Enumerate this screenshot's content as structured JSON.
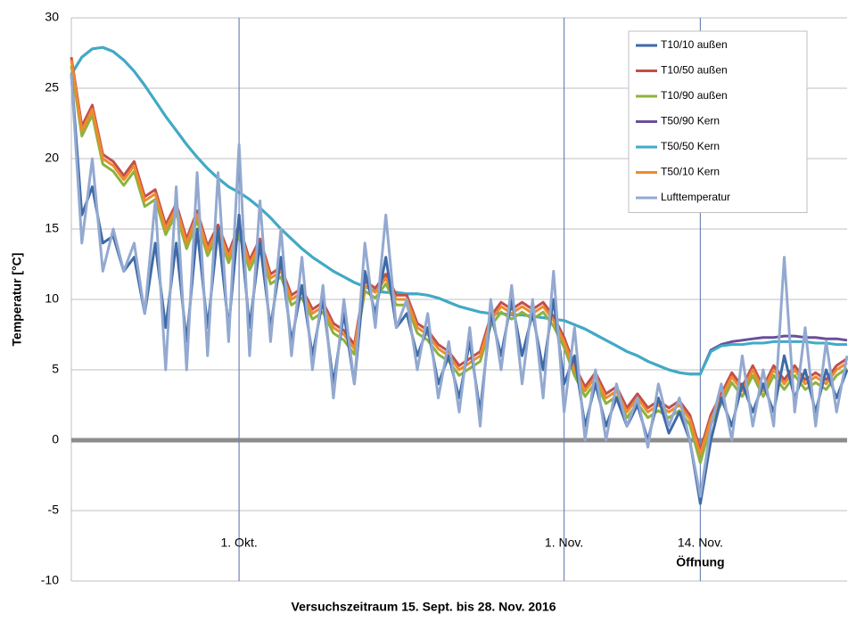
{
  "chart_data": {
    "type": "line",
    "xlabel": "Versuchszeitraum 15. Sept. bis 28. Nov. 2016",
    "ylabel": "Temperatur [°C]",
    "annotations": [
      {
        "text": "Öffnung",
        "x": 60
      }
    ],
    "x": [
      0,
      1,
      2,
      3,
      4,
      5,
      6,
      7,
      8,
      9,
      10,
      11,
      12,
      13,
      14,
      15,
      16,
      17,
      18,
      19,
      20,
      21,
      22,
      23,
      24,
      25,
      26,
      27,
      28,
      29,
      30,
      31,
      32,
      33,
      34,
      35,
      36,
      37,
      38,
      39,
      40,
      41,
      42,
      43,
      44,
      45,
      46,
      47,
      48,
      49,
      50,
      51,
      52,
      53,
      54,
      55,
      56,
      57,
      58,
      59,
      60,
      61,
      62,
      63,
      64,
      65,
      66,
      67,
      68,
      69,
      70,
      71,
      72,
      73,
      74
    ],
    "xlim": [
      0,
      74
    ],
    "xticks": [
      {
        "value": 16,
        "label": "1. Okt."
      },
      {
        "value": 47,
        "label": "1. Nov."
      },
      {
        "value": 60,
        "label": "14. Nov."
      }
    ],
    "ylim": [
      -10,
      30
    ],
    "yticks": [
      -10,
      -5,
      0,
      5,
      10,
      15,
      20,
      25,
      30
    ],
    "grid": true,
    "legend": "upper right",
    "series": [
      {
        "name": "T50/90 Kern",
        "color": "#6a4f9b",
        "values": [
          26,
          27.2,
          27.8,
          27.9,
          27.6,
          27,
          26.2,
          25.2,
          24.1,
          23,
          22,
          21,
          20.1,
          19.3,
          18.6,
          18,
          17.6,
          17.1,
          16.5,
          15.8,
          15,
          14.3,
          13.6,
          13,
          12.5,
          12,
          11.6,
          11.2,
          10.9,
          10.6,
          10.5,
          10.5,
          10.4,
          10.4,
          10.3,
          10.1,
          9.8,
          9.5,
          9.3,
          9.1,
          9,
          9,
          8.9,
          8.9,
          8.8,
          8.7,
          8.6,
          8.5,
          8.2,
          7.9,
          7.5,
          7.1,
          6.7,
          6.3,
          6,
          5.6,
          5.3,
          5,
          4.8,
          4.7,
          4.7,
          6.4,
          6.8,
          7,
          7.1,
          7.2,
          7.3,
          7.3,
          7.4,
          7.4,
          7.3,
          7.3,
          7.2,
          7.2,
          7.1
        ]
      },
      {
        "name": "T50/50 Kern",
        "color": "#3eacc6",
        "values": [
          26,
          27.2,
          27.8,
          27.9,
          27.6,
          27,
          26.2,
          25.2,
          24.1,
          23,
          22,
          21,
          20.1,
          19.3,
          18.6,
          18,
          17.6,
          17.1,
          16.5,
          15.8,
          15,
          14.3,
          13.6,
          13,
          12.5,
          12,
          11.6,
          11.2,
          10.9,
          10.6,
          10.5,
          10.5,
          10.4,
          10.4,
          10.3,
          10.1,
          9.8,
          9.5,
          9.3,
          9.1,
          9,
          9,
          8.9,
          8.9,
          8.8,
          8.7,
          8.6,
          8.5,
          8.2,
          7.9,
          7.5,
          7.1,
          6.7,
          6.3,
          6,
          5.6,
          5.3,
          5,
          4.8,
          4.7,
          4.7,
          6.3,
          6.7,
          6.8,
          6.8,
          6.9,
          6.9,
          7,
          7,
          7,
          7,
          6.9,
          6.9,
          6.8,
          6.8
        ]
      },
      {
        "name": "T10/90 außen",
        "color": "#8cb33e",
        "values": [
          26.6,
          21.6,
          23.1,
          19.6,
          19.1,
          18.1,
          19.1,
          16.6,
          17.1,
          14.6,
          16.1,
          13.6,
          15.6,
          13.1,
          14.6,
          12.6,
          14.6,
          12.1,
          13.6,
          11.1,
          11.6,
          9.6,
          10.1,
          8.6,
          9.1,
          7.6,
          7.1,
          6.1,
          10.6,
          10.1,
          11.1,
          9.6,
          9.6,
          7.6,
          7.1,
          6.1,
          5.6,
          4.6,
          5.1,
          5.6,
          8.1,
          9.1,
          8.6,
          9.1,
          8.6,
          9.1,
          8.1,
          6.6,
          4.6,
          3.1,
          4.1,
          2.6,
          3.1,
          1.6,
          2.6,
          1.6,
          2.1,
          1.6,
          2.1,
          1.1,
          -1.6,
          1.1,
          2.6,
          4.1,
          3.1,
          4.6,
          3.1,
          4.6,
          3.6,
          4.6,
          3.6,
          4.1,
          3.6,
          4.6,
          5.1
        ]
      },
      {
        "name": "T10/50 außen",
        "color": "#c0504d",
        "values": [
          27.2,
          22.3,
          23.8,
          20.3,
          19.8,
          18.8,
          19.8,
          17.3,
          17.8,
          15.3,
          16.8,
          14.3,
          16.3,
          13.8,
          15.3,
          13.3,
          15.3,
          12.8,
          14.3,
          11.8,
          12.3,
          10.3,
          10.8,
          9.3,
          9.8,
          8.3,
          7.8,
          6.8,
          11.3,
          10.8,
          11.8,
          10.3,
          10.3,
          8.3,
          7.8,
          6.8,
          6.3,
          5.3,
          5.8,
          6.3,
          8.8,
          9.8,
          9.3,
          9.8,
          9.3,
          9.8,
          8.8,
          7.3,
          5.3,
          3.8,
          4.8,
          3.3,
          3.8,
          2.3,
          3.3,
          2.3,
          2.8,
          2.3,
          2.8,
          1.8,
          -0.7,
          1.8,
          3.3,
          4.8,
          3.8,
          5.3,
          3.8,
          5.3,
          4.3,
          5.3,
          4.3,
          4.8,
          4.3,
          5.3,
          5.8
        ]
      },
      {
        "name": "T50/10 Kern",
        "color": "#f08a2c",
        "values": [
          27,
          22,
          23.5,
          20,
          19.5,
          18.5,
          19.5,
          17,
          17.5,
          15,
          16.5,
          14,
          16,
          13.5,
          15,
          13,
          15,
          12.5,
          14,
          11.5,
          12,
          10,
          10.5,
          9,
          9.5,
          8,
          7.5,
          6.5,
          11,
          10.5,
          11.5,
          10,
          10,
          8,
          7.5,
          6.5,
          6,
          5,
          5.5,
          6,
          8.5,
          9.5,
          9,
          9.5,
          9,
          9.5,
          8.5,
          7,
          5,
          3.5,
          4.5,
          3,
          3.5,
          2,
          3,
          2,
          2.5,
          2,
          2.5,
          1.5,
          -1,
          1.5,
          3,
          4.5,
          3.5,
          5,
          3.5,
          5,
          4,
          5,
          4,
          4.5,
          4,
          5,
          5.5
        ]
      },
      {
        "name": "T10/10 außen",
        "color": "#3e6aa8",
        "values": [
          26,
          16,
          18,
          14,
          14.5,
          12,
          13,
          9,
          14,
          8,
          14,
          7,
          15,
          8,
          15,
          8,
          16,
          8,
          14,
          8,
          13,
          7,
          11,
          6,
          10,
          4,
          9,
          4,
          12,
          9,
          13,
          8,
          9,
          6,
          8,
          4,
          6,
          3,
          7,
          2,
          9,
          6,
          10,
          6,
          9,
          5,
          10,
          4,
          6,
          1,
          4,
          1,
          3,
          1,
          2.5,
          0,
          3,
          0.5,
          2,
          0,
          -4.5,
          0,
          3,
          1,
          4,
          2,
          4,
          2,
          6,
          3,
          5,
          2,
          5,
          3,
          5
        ]
      },
      {
        "name": "Lufttemperatur",
        "color": "#93a9d0",
        "values": [
          26,
          14,
          20,
          12,
          15,
          12,
          14,
          9,
          17,
          5,
          18,
          5,
          19,
          6,
          19,
          7,
          21,
          6,
          17,
          7,
          15,
          6,
          13,
          5,
          11,
          3,
          10,
          4,
          14,
          8,
          16,
          8,
          10,
          5,
          9,
          3,
          7,
          2,
          8,
          1,
          10,
          5,
          11,
          4,
          10,
          3,
          12,
          2,
          8,
          0,
          5,
          0,
          4,
          1,
          3,
          -0.5,
          4,
          1,
          3,
          0,
          -4,
          1,
          4,
          0,
          6,
          1,
          5,
          1,
          13,
          2,
          8,
          1,
          7,
          2,
          6
        ]
      }
    ]
  }
}
